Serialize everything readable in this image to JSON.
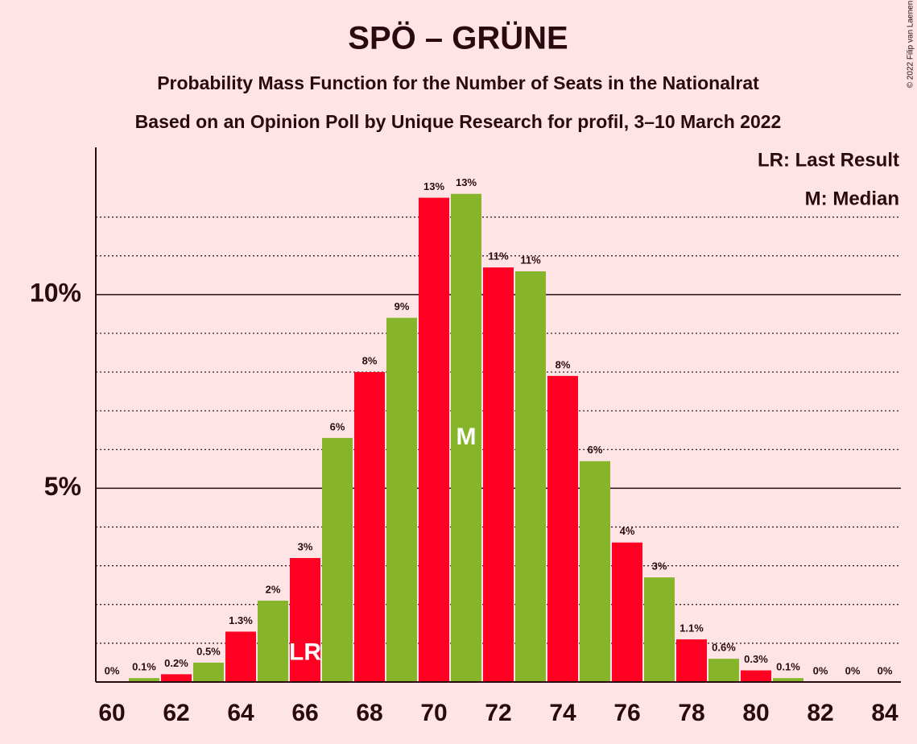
{
  "chart_data": {
    "type": "bar",
    "title": "SPÖ – GRÜNE",
    "subtitle": "Probability Mass Function for the Number of Seats in the Nationalrat",
    "subtitle2": "Based on an Opinion Poll by Unique Research for profil, 3–10 March 2022",
    "copyright": "© 2022 Filip van Laenen",
    "legend": [
      "LR: Last Result",
      "M: Median"
    ],
    "x": [
      60,
      61,
      62,
      63,
      64,
      65,
      66,
      67,
      68,
      69,
      70,
      71,
      72,
      73,
      74,
      75,
      76,
      77,
      78,
      79,
      80,
      81,
      82,
      83,
      84
    ],
    "values": [
      0,
      0.1,
      0.2,
      0.5,
      1.3,
      2.1,
      3.2,
      6.3,
      8.0,
      9.4,
      12.5,
      12.6,
      10.7,
      10.6,
      7.9,
      5.7,
      3.6,
      2.7,
      1.1,
      0.6,
      0.3,
      0.1,
      0,
      0,
      0
    ],
    "value_labels": [
      "0%",
      "0.1%",
      "0.2%",
      "0.5%",
      "1.3%",
      "2%",
      "3%",
      "6%",
      "8%",
      "9%",
      "13%",
      "13%",
      "11%",
      "11%",
      "8%",
      "6%",
      "4%",
      "3%",
      "1.1%",
      "0.6%",
      "0.3%",
      "0.1%",
      "0%",
      "0%",
      "0%"
    ],
    "colors": [
      "#ff0022",
      "#86b52b"
    ],
    "annotations": [
      {
        "x": 66,
        "text": "LR"
      },
      {
        "x": 71,
        "text": "M"
      }
    ],
    "xlim": [
      59.5,
      84.5
    ],
    "xticks": [
      60,
      62,
      64,
      66,
      68,
      70,
      72,
      74,
      76,
      78,
      80,
      82,
      84
    ],
    "ylim": [
      0,
      13.8
    ],
    "yticks": [
      {
        "value": 5,
        "label": "5%"
      },
      {
        "value": 10,
        "label": "10%"
      }
    ],
    "yminor": [
      1,
      2,
      3,
      4,
      6,
      7,
      8,
      9,
      11,
      12
    ],
    "grid": true
  }
}
